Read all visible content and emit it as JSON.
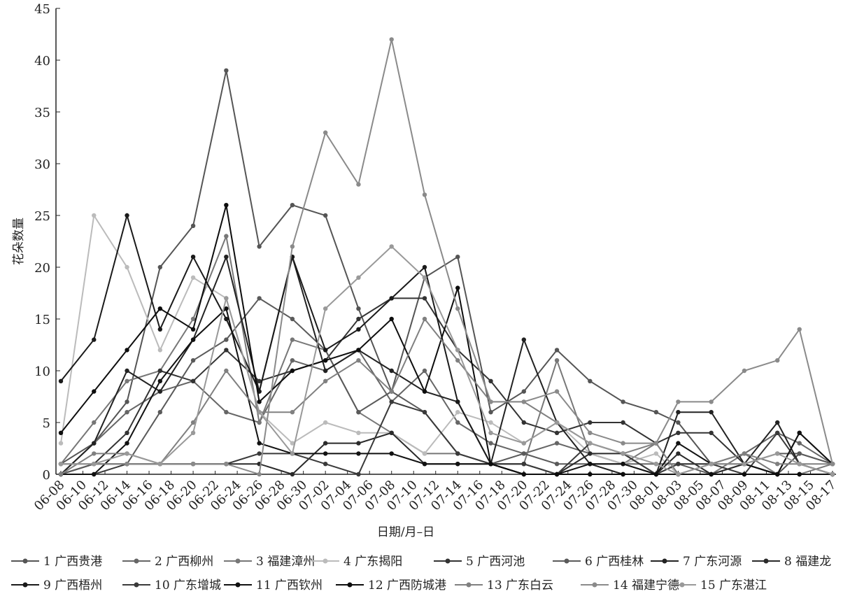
{
  "chart_data": {
    "type": "line",
    "x_label": "日期/月–日",
    "y_label": "花朵数量",
    "ylim": [
      0,
      45
    ],
    "yticks": [
      0,
      5,
      10,
      15,
      20,
      25,
      30,
      35,
      40,
      45
    ],
    "xticks": [
      "06-08",
      "06-10",
      "06-12",
      "06-14",
      "06-16",
      "06-18",
      "06-20",
      "06-22",
      "06-24",
      "06-26",
      "06-28",
      "06-30",
      "07-02",
      "07-04",
      "07-06",
      "07-08",
      "07-10",
      "07-12",
      "07-14",
      "07-16",
      "07-18",
      "07-20",
      "07-22",
      "07-24",
      "07-26",
      "07-28",
      "07-30",
      "08-01",
      "08-03",
      "08-05",
      "08-07",
      "08-09",
      "08-11",
      "08-13",
      "08-15",
      "08-17"
    ],
    "x": [
      "06-08",
      "06-11",
      "06-14",
      "06-17",
      "06-20",
      "06-23",
      "06-26",
      "06-29",
      "07-02",
      "07-05",
      "07-08",
      "07-11",
      "07-14",
      "07-17",
      "07-20",
      "07-23",
      "07-26",
      "07-29",
      "08-01",
      "08-03",
      "08-06",
      "08-09",
      "08-12",
      "08-14",
      "08-17"
    ],
    "series": [
      {
        "name": "1 广西贵港",
        "color": "#555555",
        "values": [
          1,
          3,
          7,
          20,
          24,
          39,
          22,
          26,
          25,
          16,
          8,
          19,
          21,
          6,
          8,
          12,
          9,
          7,
          6,
          5,
          1,
          1,
          0,
          2,
          1
        ]
      },
      {
        "name": "2 广西柳州",
        "color": "#666666",
        "values": [
          0,
          3,
          6,
          8,
          9,
          6,
          5,
          11,
          10,
          12,
          7,
          10,
          5,
          3,
          2,
          3,
          2,
          1,
          1,
          1,
          1,
          2,
          4,
          3,
          1
        ]
      },
      {
        "name": "3 福建漳州",
        "color": "#777777",
        "values": [
          1,
          5,
          9,
          10,
          15,
          23,
          5,
          13,
          12,
          6,
          4,
          2,
          2,
          1,
          1,
          11,
          2,
          1,
          3,
          0,
          0,
          2,
          0,
          0,
          1
        ]
      },
      {
        "name": "4 广东揭阳",
        "color": "#bbbbbb",
        "values": [
          3,
          25,
          20,
          12,
          19,
          17,
          6,
          3,
          5,
          4,
          4,
          2,
          6,
          5,
          3,
          5,
          2,
          1,
          2,
          0,
          1,
          0,
          0,
          0,
          0
        ]
      },
      {
        "name": "5 广西河池",
        "color": "#333333",
        "values": [
          0,
          1,
          4,
          10,
          9,
          12,
          9,
          10,
          11,
          15,
          17,
          17,
          12,
          9,
          5,
          4,
          5,
          5,
          3,
          4,
          4,
          1,
          0,
          4,
          1
        ]
      },
      {
        "name": "6 广西桂林",
        "color": "#5a5a5a",
        "values": [
          0,
          1,
          1,
          6,
          11,
          13,
          17,
          15,
          12,
          6,
          8,
          6,
          2,
          1,
          2,
          1,
          1,
          1,
          0,
          1,
          0,
          1,
          2,
          2,
          1
        ]
      },
      {
        "name": "7 广东河源",
        "color": "#222222",
        "values": [
          0,
          3,
          10,
          8,
          13,
          21,
          8,
          21,
          10,
          12,
          10,
          8,
          7,
          1,
          13,
          5,
          1,
          0,
          0,
          6,
          6,
          1,
          5,
          1,
          0
        ]
      },
      {
        "name": "8 福建龙",
        "color": "#2a2a2a",
        "values": [
          1,
          1,
          1,
          1,
          1,
          1,
          1,
          0,
          3,
          3,
          4,
          1,
          1,
          1,
          1,
          0,
          2,
          2,
          0,
          2,
          0,
          1,
          0,
          0,
          0
        ]
      },
      {
        "name": "9 广西梧州",
        "color": "#1a1a1a",
        "values": [
          9,
          13,
          25,
          14,
          21,
          15,
          8,
          21,
          12,
          14,
          17,
          20,
          7,
          1,
          0,
          0,
          0,
          0,
          0,
          0,
          0,
          0,
          0,
          0,
          0
        ]
      },
      {
        "name": "10 广东增城",
        "color": "#3a3a3a",
        "values": [
          0,
          0,
          1,
          1,
          1,
          1,
          2,
          2,
          1,
          0,
          7,
          6,
          2,
          1,
          1,
          0,
          3,
          2,
          0,
          1,
          1,
          0,
          4,
          1,
          0
        ]
      },
      {
        "name": "11 广西钦州",
        "color": "#111111",
        "values": [
          0,
          0,
          3,
          9,
          13,
          16,
          3,
          2,
          2,
          2,
          2,
          1,
          1,
          1,
          0,
          0,
          1,
          1,
          0,
          3,
          1,
          1,
          0,
          4,
          1
        ]
      },
      {
        "name": "12 广西防城港",
        "color": "#0d0d0d",
        "values": [
          4,
          8,
          12,
          16,
          14,
          26,
          7,
          10,
          11,
          12,
          15,
          8,
          18,
          1,
          0,
          0,
          0,
          0,
          0,
          0,
          0,
          0,
          0,
          0,
          0
        ]
      },
      {
        "name": "13 广东白云",
        "color": "#808080",
        "values": [
          0,
          2,
          2,
          1,
          5,
          10,
          6,
          6,
          9,
          11,
          8,
          15,
          11,
          7,
          7,
          5,
          3,
          2,
          3,
          0,
          1,
          2,
          1,
          1,
          1
        ]
      },
      {
        "name": "14 福建宁德",
        "color": "#8a8a8a",
        "values": [
          1,
          1,
          1,
          1,
          1,
          1,
          0,
          22,
          33,
          28,
          42,
          27,
          16,
          7,
          7,
          8,
          4,
          3,
          3,
          7,
          7,
          10,
          11,
          14,
          1
        ]
      },
      {
        "name": "15 广东湛江",
        "color": "#999999",
        "values": [
          1,
          1,
          2,
          1,
          4,
          17,
          6,
          2,
          16,
          19,
          22,
          19,
          12,
          4,
          3,
          5,
          3,
          2,
          1,
          0,
          1,
          1,
          2,
          1,
          0
        ]
      }
    ]
  }
}
